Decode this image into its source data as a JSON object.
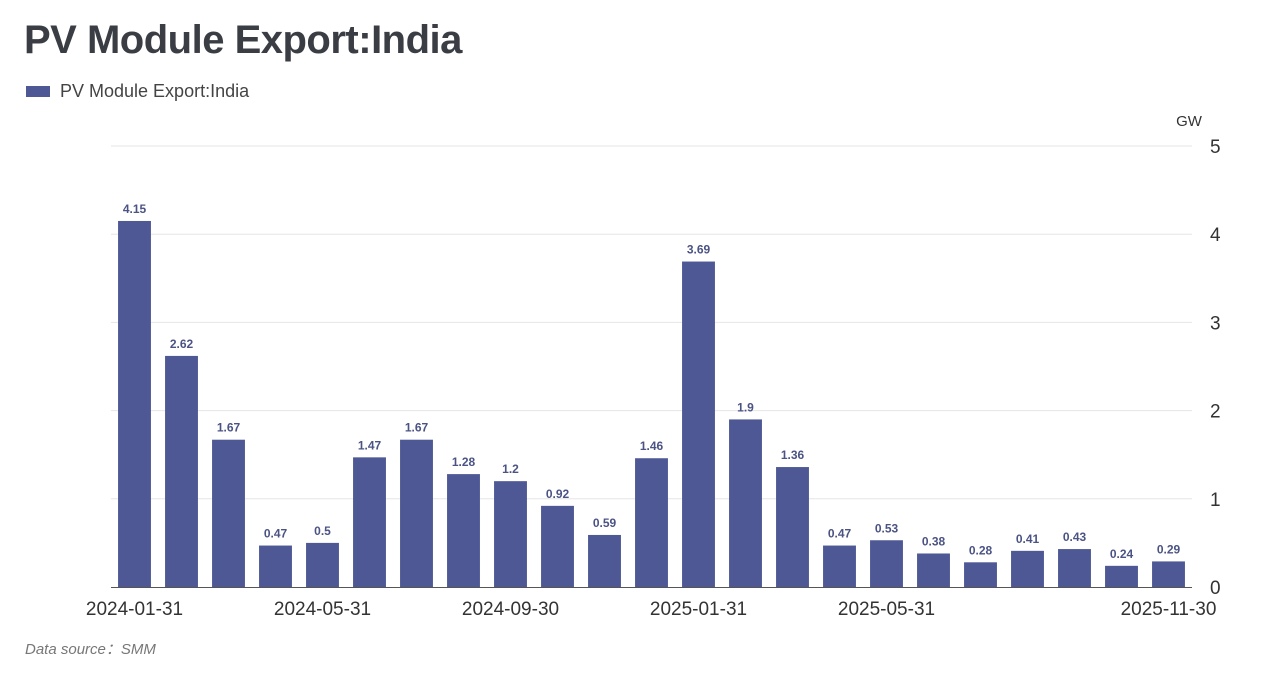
{
  "chart_data": {
    "type": "bar",
    "title": "PV Module Export:India",
    "legend": [
      "PV Module Export:India"
    ],
    "unit": "GW",
    "categories": [
      "2024-01-31",
      "2024-02-29",
      "2024-03-31",
      "2024-04-30",
      "2024-05-31",
      "2024-06-30",
      "2024-07-31",
      "2024-08-31",
      "2024-09-30",
      "2024-10-31",
      "2024-11-30",
      "2024-12-31",
      "2025-01-31",
      "2025-02-28",
      "2025-03-31",
      "2025-04-30",
      "2025-05-31",
      "2025-06-30",
      "2025-07-31",
      "2025-08-31",
      "2025-09-30",
      "2025-10-31",
      "2025-11-30"
    ],
    "x_tick_labels": [
      "2024-01-31",
      "2024-05-31",
      "2024-09-30",
      "2025-01-31",
      "2025-05-31",
      "2025-11-30"
    ],
    "values": [
      4.15,
      2.62,
      1.67,
      0.47,
      0.5,
      1.47,
      1.67,
      1.28,
      1.2,
      0.92,
      0.59,
      1.46,
      3.69,
      1.9,
      1.36,
      0.47,
      0.53,
      0.38,
      0.28,
      0.41,
      0.43,
      0.24,
      0.29
    ],
    "ylim": [
      0,
      5
    ],
    "y_ticks": [
      0,
      1,
      2,
      3,
      4,
      5
    ],
    "y_axis_side": "right",
    "grid": true,
    "bar_color": "#4e5895",
    "legend_position": "top-left"
  },
  "source_text": "Data source：SMM"
}
